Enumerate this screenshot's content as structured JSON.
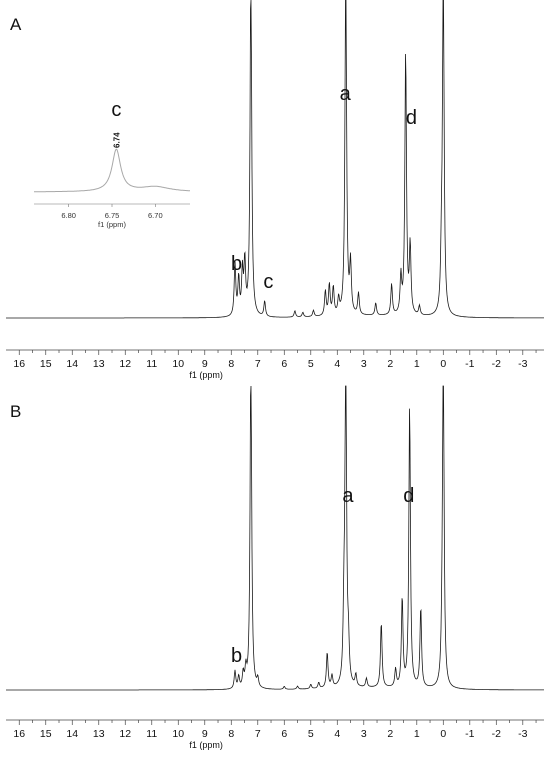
{
  "chart_data": [
    {
      "type": "line",
      "panel": "A",
      "xlabel": "f1 (ppm)",
      "xlim": [
        16.5,
        -3.8
      ],
      "x_reversed": true,
      "ticks": [
        16,
        15,
        14,
        13,
        12,
        11,
        10,
        9,
        8,
        7,
        6,
        5,
        4,
        3,
        2,
        1,
        0,
        -1,
        -2,
        -3
      ],
      "tick_labels": [
        "16",
        "15",
        "14",
        "13",
        "12",
        "11",
        "10",
        "9",
        "8",
        "7",
        "6",
        "5",
        "4",
        "3",
        "2",
        "1",
        "0",
        "-1",
        "-2",
        "-3"
      ],
      "series": [
        {
          "peaks_ppm_relative_height": [
            [
              7.86,
              0.17
            ],
            [
              7.72,
              0.12
            ],
            [
              7.58,
              0.14
            ],
            [
              7.49,
              0.17
            ],
            [
              7.26,
              1.15
            ],
            [
              6.74,
              0.05
            ],
            [
              5.6,
              0.02
            ],
            [
              5.3,
              0.015
            ],
            [
              4.9,
              0.02
            ],
            [
              4.45,
              0.08
            ],
            [
              4.3,
              0.1
            ],
            [
              4.15,
              0.09
            ],
            [
              3.95,
              0.05
            ],
            [
              3.68,
              1.15
            ],
            [
              3.5,
              0.16
            ],
            [
              3.2,
              0.07
            ],
            [
              2.55,
              0.04
            ],
            [
              1.95,
              0.1
            ],
            [
              1.6,
              0.12
            ],
            [
              1.42,
              0.85
            ],
            [
              1.25,
              0.22
            ],
            [
              0.9,
              0.03
            ],
            [
              0.07,
              0.15
            ],
            [
              0.0,
              1.15
            ]
          ]
        }
      ],
      "annotations": [
        {
          "text": "a",
          "ppm": 3.7
        },
        {
          "text": "b",
          "ppm": 7.8
        },
        {
          "text": "c",
          "ppm": 6.6
        },
        {
          "text": "d",
          "ppm": 1.2
        }
      ],
      "inset": {
        "label": "c",
        "peak_label": "6.74",
        "xlabel": "f1 (ppm)",
        "xlim": [
          6.84,
          6.66
        ],
        "tick_labels": [
          "6.80",
          "6.75",
          "6.70"
        ],
        "peaks": [
          [
            6.745,
            1.0
          ],
          [
            6.7,
            0.12
          ]
        ]
      }
    },
    {
      "type": "line",
      "panel": "B",
      "xlabel": "f1 (ppm)",
      "xlim": [
        16.5,
        -3.8
      ],
      "x_reversed": true,
      "ticks": [
        16,
        15,
        14,
        13,
        12,
        11,
        10,
        9,
        8,
        7,
        6,
        5,
        4,
        3,
        2,
        1,
        0,
        -1,
        -2,
        -3
      ],
      "tick_labels": [
        "16",
        "15",
        "14",
        "13",
        "12",
        "11",
        "10",
        "9",
        "8",
        "7",
        "6",
        "5",
        "4",
        "3",
        "2",
        "1",
        "0",
        "-1",
        "-2",
        "-3"
      ],
      "series": [
        {
          "peaks_ppm_relative_height": [
            [
              7.86,
              0.06
            ],
            [
              7.72,
              0.04
            ],
            [
              7.55,
              0.05
            ],
            [
              7.45,
              0.06
            ],
            [
              7.26,
              1.15
            ],
            [
              7.0,
              0.03
            ],
            [
              6.0,
              0.01
            ],
            [
              5.5,
              0.01
            ],
            [
              5.0,
              0.015
            ],
            [
              4.7,
              0.02
            ],
            [
              4.38,
              0.12
            ],
            [
              4.2,
              0.04
            ],
            [
              3.75,
              0.2
            ],
            [
              3.68,
              1.15
            ],
            [
              3.58,
              0.12
            ],
            [
              3.3,
              0.04
            ],
            [
              2.9,
              0.03
            ],
            [
              2.34,
              0.22
            ],
            [
              1.8,
              0.06
            ],
            [
              1.55,
              0.3
            ],
            [
              1.27,
              0.95
            ],
            [
              0.85,
              0.27
            ],
            [
              0.05,
              0.08
            ],
            [
              0.0,
              1.15
            ]
          ]
        }
      ],
      "annotations": [
        {
          "text": "a",
          "ppm": 3.6
        },
        {
          "text": "b",
          "ppm": 7.8
        },
        {
          "text": "d",
          "ppm": 1.3
        }
      ]
    }
  ],
  "panel_labels": [
    "A",
    "B"
  ]
}
